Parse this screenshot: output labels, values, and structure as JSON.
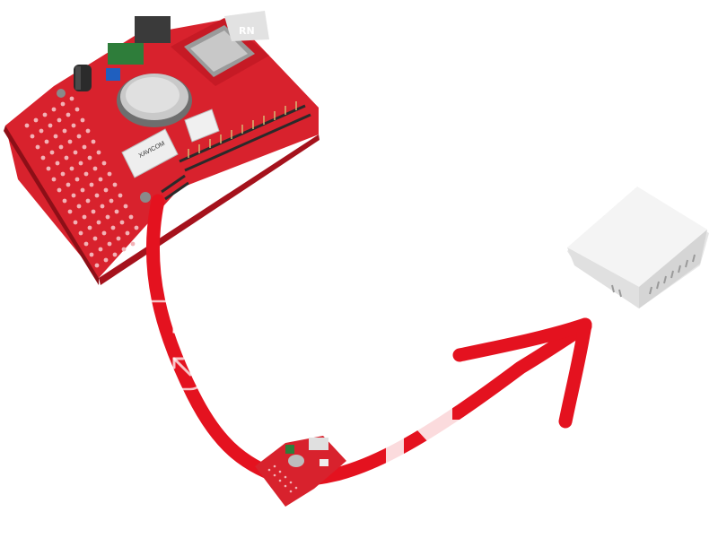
{
  "scene": {
    "board_label": "RN",
    "chip_label": "XAVICOM",
    "colors": {
      "pcb_red": "#d8222d",
      "pcb_dark": "#a5121c",
      "arrow_red": "#e4121f",
      "sensor_white": "#f1f1f1",
      "overlay_white": "#ffffff"
    }
  },
  "icons": {
    "shrink": "shrink-icon",
    "download": "download-icon"
  }
}
